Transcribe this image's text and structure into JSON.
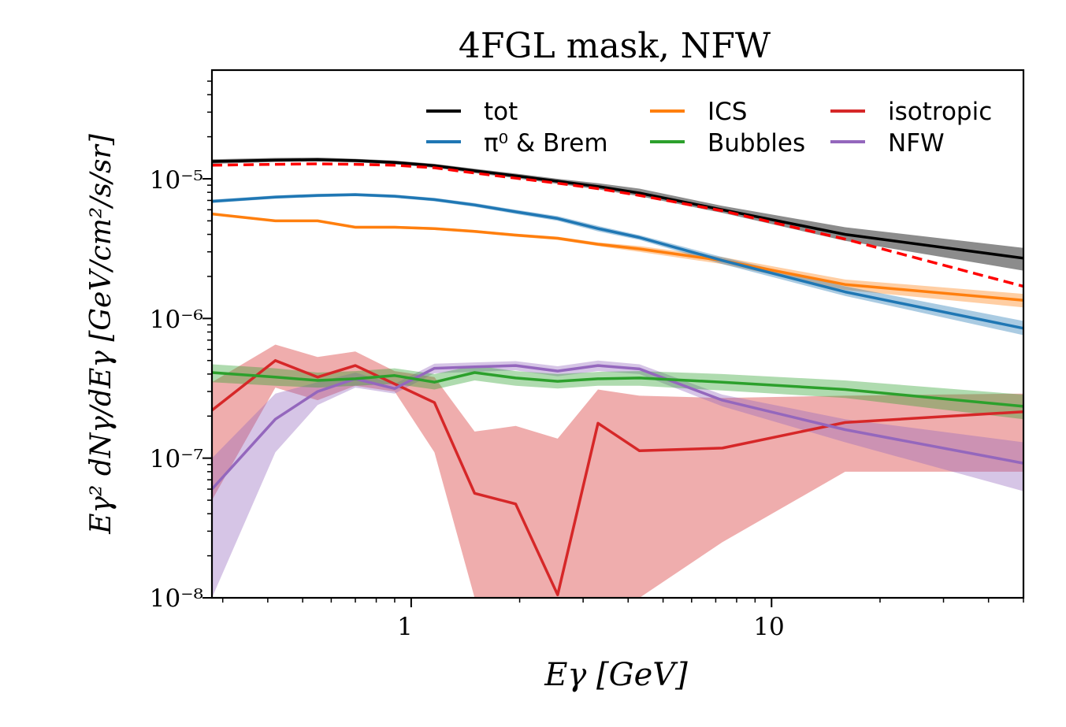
{
  "chart_data": {
    "type": "line",
    "title": "4FGL mask, NFW",
    "xlabel": "Eγ  [GeV]",
    "ylabel": "Eγ² dNγ/dEγ  [GeV/cm²/s/sr]",
    "xscale": "log",
    "yscale": "log",
    "xlim": [
      0.28,
      50
    ],
    "ylim": [
      1e-08,
      6e-05
    ],
    "x_ticks": [
      "1",
      "10"
    ],
    "y_ticks": [
      "10⁻⁸",
      "10⁻⁷",
      "10⁻⁶",
      "10⁻⁵"
    ],
    "grid": false,
    "legend": "top-right, 3 columns",
    "x": [
      0.28,
      0.42,
      0.55,
      0.7,
      0.9,
      1.16,
      1.5,
      1.95,
      2.55,
      3.3,
      4.3,
      7.3,
      16,
      50
    ],
    "series": [
      {
        "name": "tot",
        "color": "#000000",
        "style": "solid",
        "values": [
          1.33e-05,
          1.36e-05,
          1.37e-05,
          1.35e-05,
          1.31e-05,
          1.24e-05,
          1.14e-05,
          1.05e-05,
          9.6e-06,
          8.8e-06,
          7.9e-06,
          6e-06,
          4e-06,
          2.7e-06
        ],
        "lower": [
          1.28e-05,
          1.32e-05,
          1.33e-05,
          1.31e-05,
          1.27e-05,
          1.2e-05,
          1.1e-05,
          1.01e-05,
          9.2e-06,
          8.4e-06,
          7.5e-06,
          5.7e-06,
          3.6e-06,
          2.2e-06
        ],
        "upper": [
          1.38e-05,
          1.41e-05,
          1.42e-05,
          1.39e-05,
          1.35e-05,
          1.28e-05,
          1.18e-05,
          1.09e-05,
          1e-05,
          9.3e-06,
          8.5e-06,
          6.4e-06,
          4.5e-06,
          3.2e-06
        ]
      },
      {
        "name": "π⁰ & Brem",
        "color": "#1f77b4",
        "style": "solid",
        "values": [
          6.9e-06,
          7.4e-06,
          7.6e-06,
          7.7e-06,
          7.5e-06,
          7.1e-06,
          6.5e-06,
          5.8e-06,
          5.2e-06,
          4.4e-06,
          3.8e-06,
          2.6e-06,
          1.55e-06,
          8.5e-07
        ],
        "lower": [
          6.7e-06,
          7.2e-06,
          7.4e-06,
          7.5e-06,
          7.3e-06,
          6.9e-06,
          6.3e-06,
          5.6e-06,
          5e-06,
          4.2e-06,
          3.65e-06,
          2.45e-06,
          1.45e-06,
          7.6e-07
        ],
        "upper": [
          7.1e-06,
          7.6e-06,
          7.8e-06,
          7.9e-06,
          7.7e-06,
          7.3e-06,
          6.7e-06,
          6e-06,
          5.4e-06,
          4.6e-06,
          3.95e-06,
          2.75e-06,
          1.7e-06,
          9.6e-07
        ]
      },
      {
        "name": "ICS",
        "color": "#ff7f0e",
        "style": "solid",
        "values": [
          5.6e-06,
          5e-06,
          5e-06,
          4.5e-06,
          4.5e-06,
          4.4e-06,
          4.2e-06,
          3.95e-06,
          3.75e-06,
          3.4e-06,
          3.15e-06,
          2.6e-06,
          1.75e-06,
          1.35e-06
        ],
        "lower": [
          5.5e-06,
          4.9e-06,
          4.9e-06,
          4.4e-06,
          4.4e-06,
          4.3e-06,
          4.1e-06,
          3.85e-06,
          3.65e-06,
          3.3e-06,
          3e-06,
          2.45e-06,
          1.6e-06,
          1.2e-06
        ],
        "upper": [
          5.7e-06,
          5.1e-06,
          5.1e-06,
          4.6e-06,
          4.6e-06,
          4.5e-06,
          4.3e-06,
          4.05e-06,
          3.85e-06,
          3.5e-06,
          3.3e-06,
          2.75e-06,
          1.9e-06,
          1.5e-06
        ]
      },
      {
        "name": "Bubbles",
        "color": "#2ca02c",
        "style": "solid",
        "values": [
          4.1e-07,
          3.8e-07,
          3.6e-07,
          3.7e-07,
          3.9e-07,
          3.5e-07,
          4.1e-07,
          3.75e-07,
          3.55e-07,
          3.7e-07,
          3.75e-07,
          3.5e-07,
          3.1e-07,
          2.35e-07
        ],
        "lower": [
          3.5e-07,
          3.3e-07,
          3.2e-07,
          3.3e-07,
          3.4e-07,
          3.1e-07,
          3.6e-07,
          3.3e-07,
          3.15e-07,
          3.3e-07,
          3.3e-07,
          3.05e-07,
          2.7e-07,
          1.9e-07
        ],
        "upper": [
          4.7e-07,
          4.4e-07,
          4.1e-07,
          4.2e-07,
          4.4e-07,
          4e-07,
          4.6e-07,
          4.2e-07,
          4e-07,
          4.15e-07,
          4.2e-07,
          4e-07,
          3.6e-07,
          2.85e-07
        ]
      },
      {
        "name": "isotropic",
        "color": "#d62728",
        "style": "solid",
        "values": [
          2.2e-07,
          5e-07,
          3.8e-07,
          4.6e-07,
          3.4e-07,
          2.5e-07,
          5.6e-08,
          4.7e-08,
          1.05e-08,
          1.78e-07,
          1.13e-07,
          1.18e-07,
          1.8e-07,
          2.15e-07
        ],
        "lower": [
          5e-08,
          3.2e-07,
          2.6e-07,
          3.3e-07,
          3e-07,
          1.1e-07,
          1e-08,
          1e-08,
          1e-08,
          1e-08,
          1e-08,
          2.5e-08,
          8e-08,
          8e-08
        ],
        "upper": [
          3.5e-07,
          6.5e-07,
          5.3e-07,
          5.8e-07,
          4.2e-07,
          3.8e-07,
          1.55e-07,
          1.7e-07,
          1.38e-07,
          3.1e-07,
          2.8e-07,
          2.7e-07,
          2.8e-07,
          2.9e-07
        ]
      },
      {
        "name": "NFW",
        "color": "#9467bd",
        "style": "solid",
        "values": [
          6e-08,
          1.9e-07,
          3e-07,
          3.7e-07,
          3.15e-07,
          4.4e-07,
          4.5e-07,
          4.6e-07,
          4.2e-07,
          4.6e-07,
          4.35e-07,
          2.6e-07,
          1.6e-07,
          9.2e-08
        ],
        "lower": [
          1e-08,
          1.1e-07,
          2.4e-07,
          3.2e-07,
          2.9e-07,
          4.05e-07,
          4.15e-07,
          4.25e-07,
          3.85e-07,
          4.2e-07,
          4e-07,
          2.35e-07,
          1.3e-07,
          5.8e-08
        ],
        "upper": [
          1e-07,
          2.9e-07,
          3.5e-07,
          4.1e-07,
          3.4e-07,
          4.75e-07,
          4.85e-07,
          4.95e-07,
          4.55e-07,
          5e-07,
          4.7e-07,
          2.85e-07,
          1.9e-07,
          1.3e-07
        ]
      },
      {
        "name": "",
        "color": "#ff0000",
        "style": "dashed",
        "values": [
          1.25e-05,
          1.27e-05,
          1.28e-05,
          1.27e-05,
          1.25e-05,
          1.2e-05,
          1.1e-05,
          1.01e-05,
          9.3e-06,
          8.5e-06,
          7.6e-06,
          5.9e-06,
          3.7e-06,
          1.7e-06
        ]
      }
    ]
  }
}
